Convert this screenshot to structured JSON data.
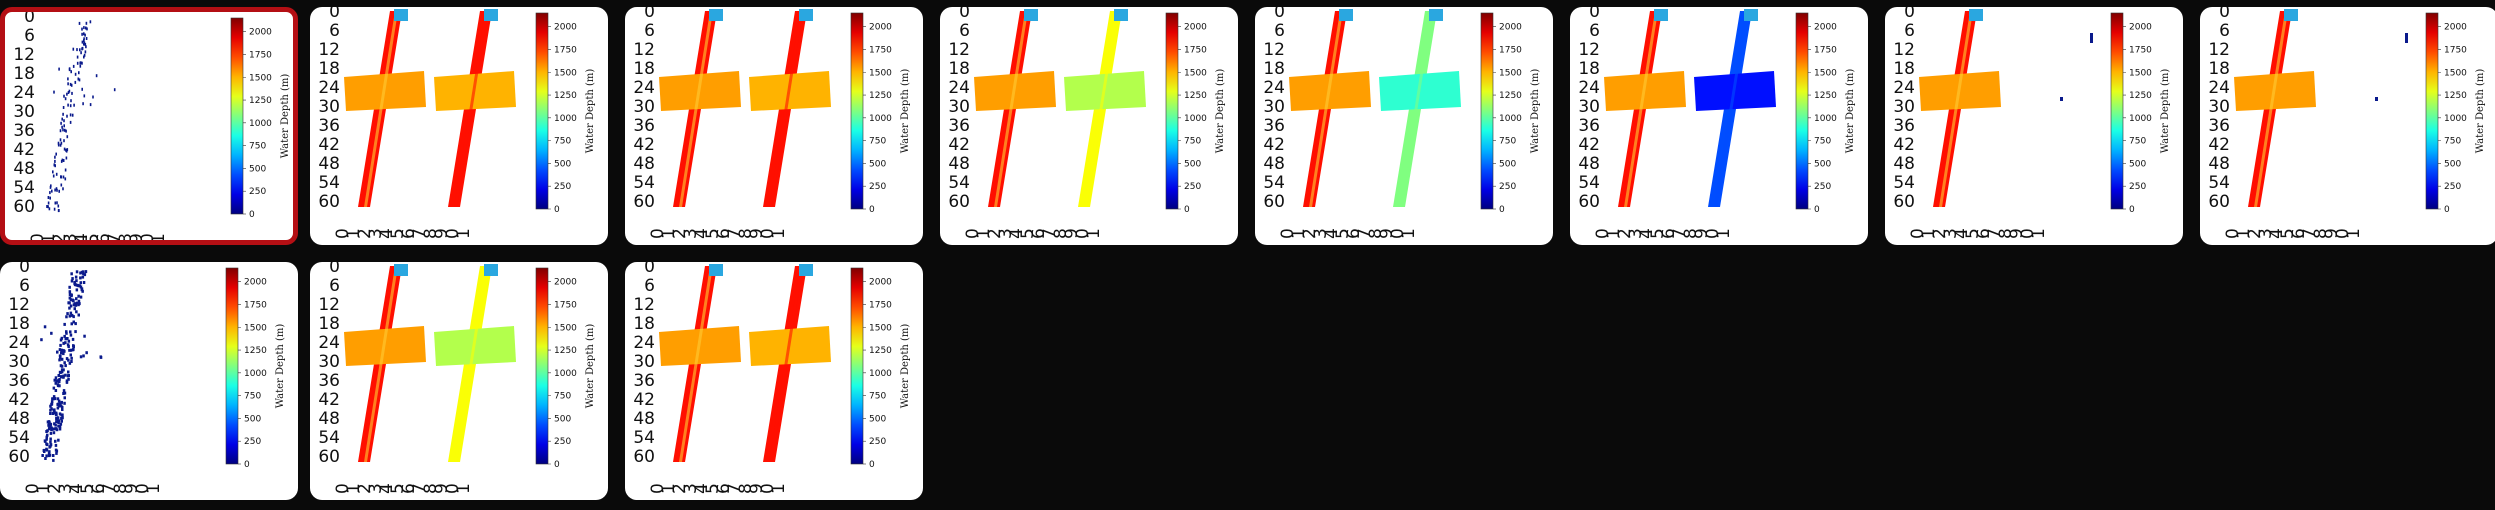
{
  "gallery": {
    "colorbar": {
      "label": "Water Depth (m)",
      "ticks": [
        "0",
        "250",
        "500",
        "750",
        "1000",
        "1250",
        "1500",
        "1750",
        "2000"
      ]
    },
    "y_ticks": [
      "0",
      "6",
      "12",
      "18",
      "24",
      "30",
      "36",
      "42",
      "48",
      "54",
      "60"
    ],
    "x_ticks": [
      "0",
      "1",
      "2",
      "3",
      "4",
      "5",
      "6",
      "7",
      "8",
      "9",
      "0",
      "1"
    ],
    "colors": {
      "selected_border": "#b40f14",
      "background": "#0a0a0a",
      "card": "#ffffff"
    },
    "thumbnails": [
      {
        "id": 1,
        "variant": "sparse",
        "selected": true
      },
      {
        "id": 2,
        "variant": "pair-warm",
        "selected": false
      },
      {
        "id": 3,
        "variant": "pair-warm",
        "selected": false
      },
      {
        "id": 4,
        "variant": "pair-yellow",
        "selected": false
      },
      {
        "id": 5,
        "variant": "pair-green",
        "selected": false
      },
      {
        "id": 6,
        "variant": "pair-blue",
        "selected": false
      },
      {
        "id": 7,
        "variant": "single",
        "selected": false
      },
      {
        "id": 8,
        "variant": "single",
        "selected": false
      },
      {
        "id": 9,
        "variant": "sparse-dense",
        "selected": false
      },
      {
        "id": 10,
        "variant": "pair-yellow",
        "selected": false
      },
      {
        "id": 11,
        "variant": "pair-warm",
        "selected": false
      }
    ]
  }
}
